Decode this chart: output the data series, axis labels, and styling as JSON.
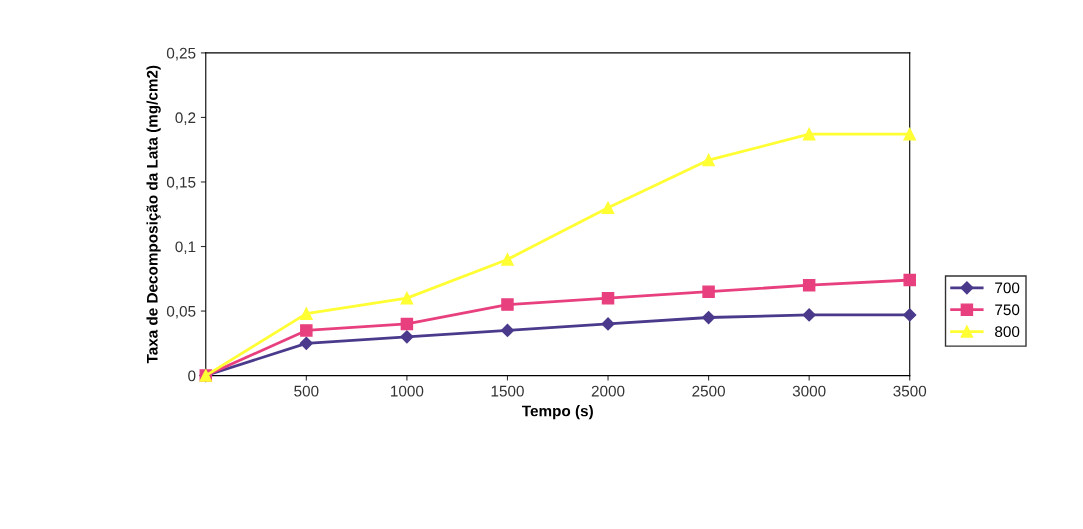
{
  "chart_data": {
    "type": "line",
    "xlabel": "Tempo (s)",
    "ylabel": "Taxa de Decomposição da Lata (mg/cm2)",
    "x": [
      0,
      500,
      1000,
      1500,
      2000,
      2500,
      3000,
      3500
    ],
    "series": [
      {
        "name": "700",
        "color": "#4b3a8c",
        "marker": "diamond",
        "values": [
          0,
          0.025,
          0.03,
          0.035,
          0.04,
          0.045,
          0.047,
          0.047
        ]
      },
      {
        "name": "750",
        "color": "#e8407f",
        "marker": "square",
        "values": [
          0,
          0.035,
          0.04,
          0.055,
          0.06,
          0.065,
          0.07,
          0.074
        ]
      },
      {
        "name": "800",
        "color": "#ffff33",
        "marker": "triangle",
        "values": [
          0,
          0.048,
          0.06,
          0.09,
          0.13,
          0.167,
          0.187,
          0.187
        ]
      }
    ],
    "xlim": [
      0,
      3500
    ],
    "xticks": [
      500,
      1000,
      1500,
      2000,
      2500,
      3000,
      3500
    ],
    "ylim": [
      0,
      0.25
    ],
    "yticks": [
      {
        "value": 0,
        "label": "0"
      },
      {
        "value": 0.05,
        "label": "0,05"
      },
      {
        "value": 0.1,
        "label": "0,1"
      },
      {
        "value": 0.15,
        "label": "0,15"
      },
      {
        "value": 0.2,
        "label": "0,2"
      },
      {
        "value": 0.25,
        "label": "0,25"
      }
    ],
    "grid": false,
    "legend": "right",
    "line_style": "solid"
  }
}
